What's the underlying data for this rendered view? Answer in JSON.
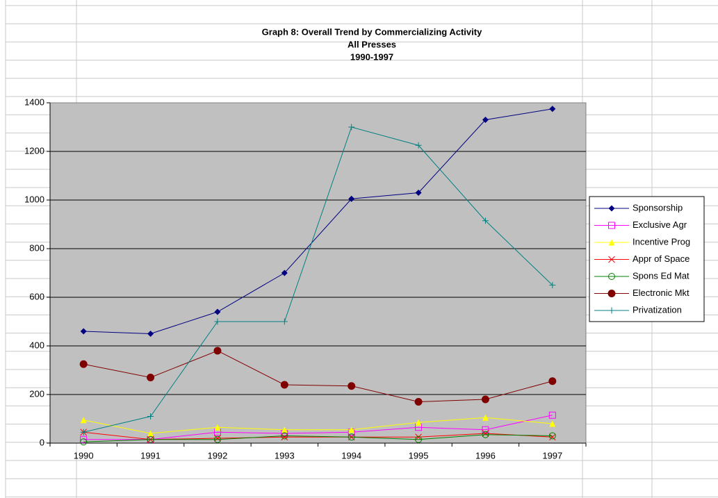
{
  "chart_data": {
    "type": "line",
    "title": "Graph 8: Overall Trend by Commercializing Activity",
    "subtitle": [
      "All Presses",
      "1990-1997"
    ],
    "categories": [
      "1990",
      "1991",
      "1992",
      "1993",
      "1994",
      "1995",
      "1996",
      "1997"
    ],
    "ylim": [
      0,
      1400
    ],
    "yticks": [
      0,
      200,
      400,
      600,
      800,
      1000,
      1200,
      1400
    ],
    "grid": true,
    "legend": "right",
    "series": [
      {
        "name": "Sponsorship",
        "color": "#000080",
        "marker": "diamond",
        "values": [
          460,
          450,
          540,
          700,
          1005,
          1030,
          1330,
          1375
        ]
      },
      {
        "name": "Exclusive Agr",
        "color": "#ff00ff",
        "marker": "square-open",
        "values": [
          15,
          15,
          45,
          40,
          45,
          65,
          55,
          115
        ]
      },
      {
        "name": "Incentive Prog",
        "color": "#ffff00",
        "marker": "triangle",
        "values": [
          95,
          40,
          65,
          55,
          55,
          85,
          105,
          80
        ]
      },
      {
        "name": "Appr of Space",
        "color": "#ff0000",
        "marker": "x",
        "values": [
          45,
          15,
          20,
          25,
          25,
          25,
          40,
          25
        ]
      },
      {
        "name": "Spons Ed Mat",
        "color": "#008000",
        "marker": "circle-open",
        "values": [
          5,
          15,
          15,
          30,
          25,
          15,
          35,
          30
        ]
      },
      {
        "name": "Electronic Mkt",
        "color": "#800000",
        "marker": "circle",
        "values": [
          325,
          270,
          380,
          240,
          235,
          170,
          180,
          255
        ]
      },
      {
        "name": "Privatization",
        "color": "#008080",
        "marker": "plus",
        "values": [
          45,
          110,
          500,
          500,
          1300,
          1225,
          915,
          650
        ]
      }
    ]
  }
}
